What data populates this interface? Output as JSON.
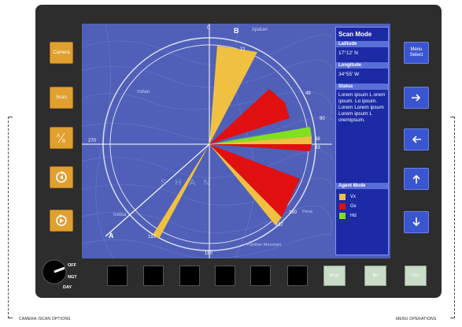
{
  "left_buttons": [
    {
      "label": "Camera",
      "icon": ""
    },
    {
      "label": "Scan",
      "icon": ""
    },
    {
      "label": "A/B",
      "icon": ""
    },
    {
      "label": "",
      "icon": "rotate-cw-icon"
    },
    {
      "label": "",
      "icon": "rotate-ccw-icon"
    }
  ],
  "right_buttons": [
    {
      "label": "Menu Select",
      "icon": ""
    },
    {
      "label": "",
      "icon": "arrow-right-icon"
    },
    {
      "label": "",
      "icon": "arrow-left-icon"
    },
    {
      "label": "",
      "icon": "arrow-up-icon"
    },
    {
      "label": "",
      "icon": "arrow-down-icon"
    }
  ],
  "panel": {
    "title": "Scan Mode",
    "latitude_label": "Latitude",
    "latitude_value": "17°12' N",
    "longitude_label": "Longitude",
    "longitude_value": "34°55' W",
    "status_label": "Status",
    "status_text": "Lorem ipsum L orem ipsum. Lo ipsum. Lorem Lorem ipsum Lorem ipsum L oremipsum.",
    "agent_label": "Agent Mode",
    "agents": [
      {
        "name": "Vx",
        "color": "#f0c040"
      },
      {
        "name": "Gx",
        "color": "#e01010"
      },
      {
        "name": "Hd",
        "color": "#80e020"
      }
    ]
  },
  "map": {
    "bearing_labels": {
      "b0": "0",
      "b90": "90",
      "b180": "180",
      "b270": "270",
      "b21": "21",
      "b49": "49",
      "b88": "88",
      "b93": "93",
      "b150": "150",
      "b157": "157",
      "b193": "193"
    },
    "point_a": "A",
    "point_b": "B",
    "places": {
      "indian": "Indian",
      "ajlaban": "Ajlaban",
      "shan": "S H A N",
      "ivetea": "Ivetea",
      "panther": "Panther Mountain",
      "pena": "Pena"
    }
  },
  "bottom": {
    "green_buttons": [
      "Mute",
      "Brt",
      "Dim"
    ],
    "knob_labels": {
      "off": "OFF",
      "ngt": "NGT",
      "day": "DAY"
    },
    "captions": {
      "left": "CAMERA /SCAN OPTIONS",
      "right": "MENU OPERATIONS"
    }
  },
  "colors": {
    "vx": "#f0c040",
    "gx": "#e01010",
    "hd": "#80e020",
    "panel": "#1c2aa6",
    "map": "#5060b8"
  }
}
